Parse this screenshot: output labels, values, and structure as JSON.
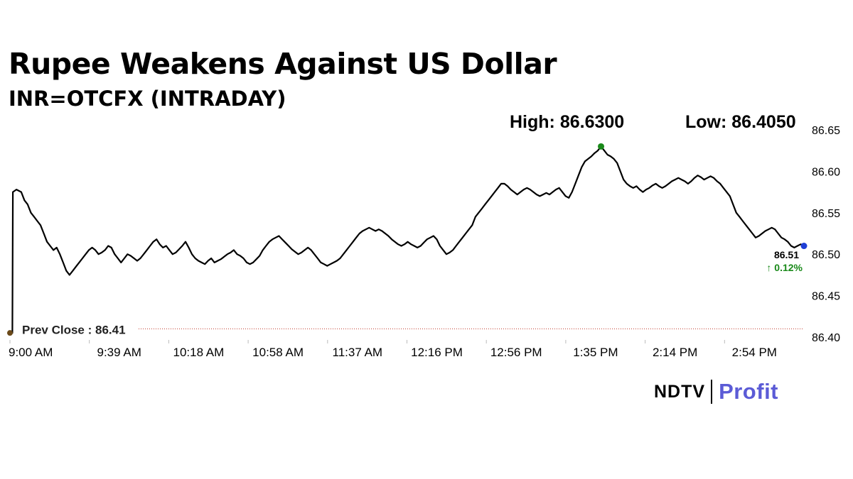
{
  "header": {
    "title": "Rupee Weakens Against US Dollar",
    "subtitle": "INR=OTCFX (INTRADAY)"
  },
  "stats": {
    "high_label": "High: 86.6300",
    "low_label": "Low: 86.4050"
  },
  "brand": {
    "ndtv": "NDTV",
    "profit": "Profit"
  },
  "chart_data": {
    "type": "line",
    "ylim": [
      86.4,
      86.65
    ],
    "yticks": [
      "86.65",
      "86.60",
      "86.55",
      "86.50",
      "86.45",
      "86.40"
    ],
    "xticks": [
      "9:00 AM",
      "9:39 AM",
      "10:18 AM",
      "10:58 AM",
      "11:37 AM",
      "12:16 PM",
      "12:56 PM",
      "1:35 PM",
      "2:14 PM",
      "2:54 PM"
    ],
    "prev_close": 86.41,
    "prev_close_label": "Prev Close : 86.41",
    "last_value_label": "86.51",
    "change_label": "↑ 0.12%",
    "high": 86.63,
    "low": 86.405,
    "colors": {
      "line": "#000000",
      "prev_close_line": "#c0392b",
      "high_marker": "#1a8a1a",
      "last_marker": "#1f3fd6",
      "change_up": "#1a8a1a",
      "start_marker": "#6b4a1a"
    },
    "series": [
      {
        "values": [
          [
            0,
            86.405
          ],
          [
            1.5,
            86.405
          ],
          [
            1.8,
            86.575
          ],
          [
            4,
            86.578
          ],
          [
            7,
            86.575
          ],
          [
            9,
            86.565
          ],
          [
            11,
            86.56
          ],
          [
            13,
            86.55
          ],
          [
            15,
            86.545
          ],
          [
            17,
            86.54
          ],
          [
            19,
            86.535
          ],
          [
            21,
            86.525
          ],
          [
            23,
            86.515
          ],
          [
            25,
            86.51
          ],
          [
            27,
            86.505
          ],
          [
            29,
            86.508
          ],
          [
            31,
            86.5
          ],
          [
            33,
            86.49
          ],
          [
            35,
            86.48
          ],
          [
            37,
            86.475
          ],
          [
            39,
            86.48
          ],
          [
            41,
            86.485
          ],
          [
            43,
            86.49
          ],
          [
            45,
            86.495
          ],
          [
            47,
            86.5
          ],
          [
            49,
            86.505
          ],
          [
            51,
            86.508
          ],
          [
            53,
            86.505
          ],
          [
            55,
            86.5
          ],
          [
            57,
            86.502
          ],
          [
            59,
            86.505
          ],
          [
            61,
            86.51
          ],
          [
            63,
            86.508
          ],
          [
            65,
            86.5
          ],
          [
            67,
            86.495
          ],
          [
            69,
            86.49
          ],
          [
            71,
            86.495
          ],
          [
            73,
            86.5
          ],
          [
            75,
            86.498
          ],
          [
            77,
            86.495
          ],
          [
            79,
            86.492
          ],
          [
            81,
            86.495
          ],
          [
            83,
            86.5
          ],
          [
            85,
            86.505
          ],
          [
            87,
            86.51
          ],
          [
            89,
            86.515
          ],
          [
            91,
            86.518
          ],
          [
            93,
            86.512
          ],
          [
            95,
            86.508
          ],
          [
            97,
            86.51
          ],
          [
            99,
            86.505
          ],
          [
            101,
            86.5
          ],
          [
            103,
            86.502
          ],
          [
            105,
            86.506
          ],
          [
            107,
            86.51
          ],
          [
            109,
            86.515
          ],
          [
            111,
            86.508
          ],
          [
            113,
            86.5
          ],
          [
            115,
            86.495
          ],
          [
            117,
            86.492
          ],
          [
            119,
            86.49
          ],
          [
            121,
            86.488
          ],
          [
            123,
            86.492
          ],
          [
            125,
            86.495
          ],
          [
            127,
            86.49
          ],
          [
            129,
            86.492
          ],
          [
            131,
            86.494
          ],
          [
            133,
            86.497
          ],
          [
            135,
            86.5
          ],
          [
            137,
            86.502
          ],
          [
            139,
            86.505
          ],
          [
            141,
            86.5
          ],
          [
            143,
            86.498
          ],
          [
            145,
            86.495
          ],
          [
            147,
            86.49
          ],
          [
            149,
            86.488
          ],
          [
            151,
            86.49
          ],
          [
            153,
            86.494
          ],
          [
            155,
            86.498
          ],
          [
            157,
            86.505
          ],
          [
            159,
            86.51
          ],
          [
            161,
            86.515
          ],
          [
            163,
            86.518
          ],
          [
            165,
            86.52
          ],
          [
            167,
            86.522
          ],
          [
            169,
            86.518
          ],
          [
            171,
            86.514
          ],
          [
            173,
            86.51
          ],
          [
            175,
            86.506
          ],
          [
            177,
            86.503
          ],
          [
            179,
            86.5
          ],
          [
            181,
            86.502
          ],
          [
            183,
            86.505
          ],
          [
            185,
            86.508
          ],
          [
            187,
            86.505
          ],
          [
            189,
            86.5
          ],
          [
            191,
            86.495
          ],
          [
            193,
            86.49
          ],
          [
            195,
            86.488
          ],
          [
            197,
            86.486
          ],
          [
            199,
            86.488
          ],
          [
            201,
            86.49
          ],
          [
            203,
            86.492
          ],
          [
            205,
            86.495
          ],
          [
            207,
            86.5
          ],
          [
            209,
            86.505
          ],
          [
            211,
            86.51
          ],
          [
            213,
            86.515
          ],
          [
            215,
            86.52
          ],
          [
            217,
            86.525
          ],
          [
            219,
            86.528
          ],
          [
            221,
            86.53
          ],
          [
            223,
            86.532
          ],
          [
            225,
            86.53
          ],
          [
            227,
            86.528
          ],
          [
            229,
            86.53
          ],
          [
            231,
            86.528
          ],
          [
            233,
            86.525
          ],
          [
            235,
            86.522
          ],
          [
            237,
            86.518
          ],
          [
            239,
            86.515
          ],
          [
            241,
            86.512
          ],
          [
            243,
            86.51
          ],
          [
            245,
            86.512
          ],
          [
            247,
            86.515
          ],
          [
            249,
            86.512
          ],
          [
            251,
            86.51
          ],
          [
            253,
            86.508
          ],
          [
            255,
            86.51
          ],
          [
            257,
            86.514
          ],
          [
            259,
            86.518
          ],
          [
            261,
            86.52
          ],
          [
            263,
            86.522
          ],
          [
            265,
            86.518
          ],
          [
            267,
            86.51
          ],
          [
            269,
            86.505
          ],
          [
            271,
            86.5
          ],
          [
            273,
            86.502
          ],
          [
            275,
            86.505
          ],
          [
            277,
            86.51
          ],
          [
            279,
            86.515
          ],
          [
            281,
            86.52
          ],
          [
            283,
            86.525
          ],
          [
            285,
            86.53
          ],
          [
            287,
            86.535
          ],
          [
            289,
            86.545
          ],
          [
            291,
            86.55
          ],
          [
            293,
            86.555
          ],
          [
            295,
            86.56
          ],
          [
            297,
            86.565
          ],
          [
            299,
            86.57
          ],
          [
            301,
            86.575
          ],
          [
            303,
            86.58
          ],
          [
            305,
            86.585
          ],
          [
            307,
            86.585
          ],
          [
            309,
            86.582
          ],
          [
            311,
            86.578
          ],
          [
            313,
            86.575
          ],
          [
            315,
            86.572
          ],
          [
            317,
            86.575
          ],
          [
            319,
            86.578
          ],
          [
            321,
            86.58
          ],
          [
            323,
            86.578
          ],
          [
            325,
            86.575
          ],
          [
            327,
            86.572
          ],
          [
            329,
            86.57
          ],
          [
            331,
            86.572
          ],
          [
            333,
            86.574
          ],
          [
            335,
            86.572
          ],
          [
            337,
            86.575
          ],
          [
            339,
            86.578
          ],
          [
            341,
            86.58
          ],
          [
            343,
            86.575
          ],
          [
            345,
            86.57
          ],
          [
            347,
            86.568
          ],
          [
            349,
            86.575
          ],
          [
            351,
            86.585
          ],
          [
            353,
            86.595
          ],
          [
            355,
            86.605
          ],
          [
            357,
            86.612
          ],
          [
            359,
            86.615
          ],
          [
            361,
            86.618
          ],
          [
            363,
            86.622
          ],
          [
            365,
            86.625
          ],
          [
            367,
            86.63
          ],
          [
            369,
            86.625
          ],
          [
            371,
            86.62
          ],
          [
            373,
            86.618
          ],
          [
            375,
            86.615
          ],
          [
            377,
            86.61
          ],
          [
            379,
            86.6
          ],
          [
            381,
            86.59
          ],
          [
            383,
            86.585
          ],
          [
            385,
            86.582
          ],
          [
            387,
            86.58
          ],
          [
            389,
            86.582
          ],
          [
            391,
            86.578
          ],
          [
            393,
            86.575
          ],
          [
            395,
            86.578
          ],
          [
            397,
            86.58
          ],
          [
            399,
            86.583
          ],
          [
            401,
            86.585
          ],
          [
            403,
            86.582
          ],
          [
            405,
            86.58
          ],
          [
            407,
            86.582
          ],
          [
            409,
            86.585
          ],
          [
            411,
            86.588
          ],
          [
            413,
            86.59
          ],
          [
            415,
            86.592
          ],
          [
            417,
            86.59
          ],
          [
            419,
            86.588
          ],
          [
            421,
            86.585
          ],
          [
            423,
            86.588
          ],
          [
            425,
            86.592
          ],
          [
            427,
            86.595
          ],
          [
            429,
            86.593
          ],
          [
            431,
            86.59
          ],
          [
            433,
            86.592
          ],
          [
            435,
            86.594
          ],
          [
            437,
            86.592
          ],
          [
            439,
            86.588
          ],
          [
            441,
            86.585
          ],
          [
            443,
            86.58
          ],
          [
            445,
            86.575
          ],
          [
            447,
            86.57
          ],
          [
            449,
            86.56
          ],
          [
            451,
            86.55
          ],
          [
            453,
            86.545
          ],
          [
            455,
            86.54
          ],
          [
            457,
            86.535
          ],
          [
            459,
            86.53
          ],
          [
            461,
            86.525
          ],
          [
            463,
            86.52
          ],
          [
            465,
            86.522
          ],
          [
            467,
            86.525
          ],
          [
            469,
            86.528
          ],
          [
            471,
            86.53
          ],
          [
            473,
            86.532
          ],
          [
            475,
            86.53
          ],
          [
            477,
            86.525
          ],
          [
            479,
            86.52
          ],
          [
            481,
            86.518
          ],
          [
            483,
            86.515
          ],
          [
            485,
            86.51
          ],
          [
            487,
            86.508
          ],
          [
            489,
            86.51
          ],
          [
            491,
            86.512
          ],
          [
            493,
            86.51
          ]
        ]
      }
    ]
  }
}
